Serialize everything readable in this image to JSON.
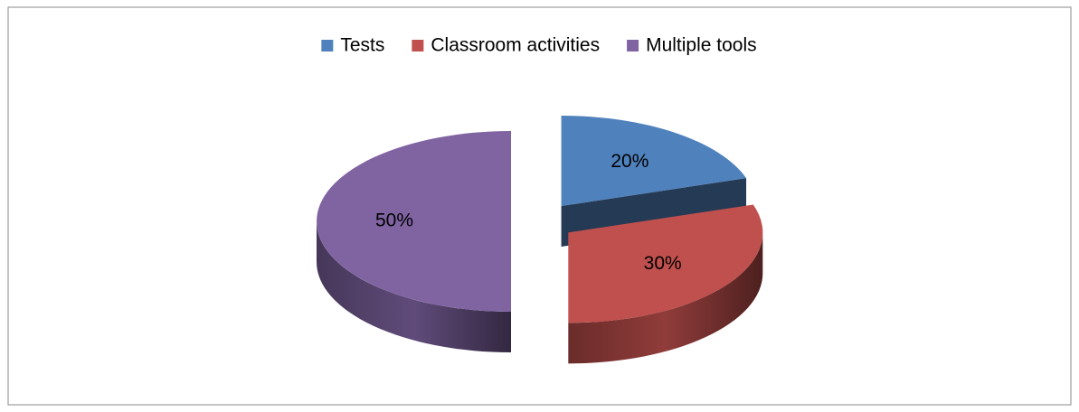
{
  "chart_data": {
    "type": "pie",
    "three_d": true,
    "exploded": true,
    "categories": [
      "Tests",
      "Classroom activities",
      "Multiple tools"
    ],
    "values": [
      20,
      30,
      50
    ],
    "value_labels": [
      "20%",
      "30%",
      "50%"
    ],
    "colors": [
      "#4f81bd",
      "#c0504d",
      "#8064a2"
    ],
    "legend": "top"
  }
}
